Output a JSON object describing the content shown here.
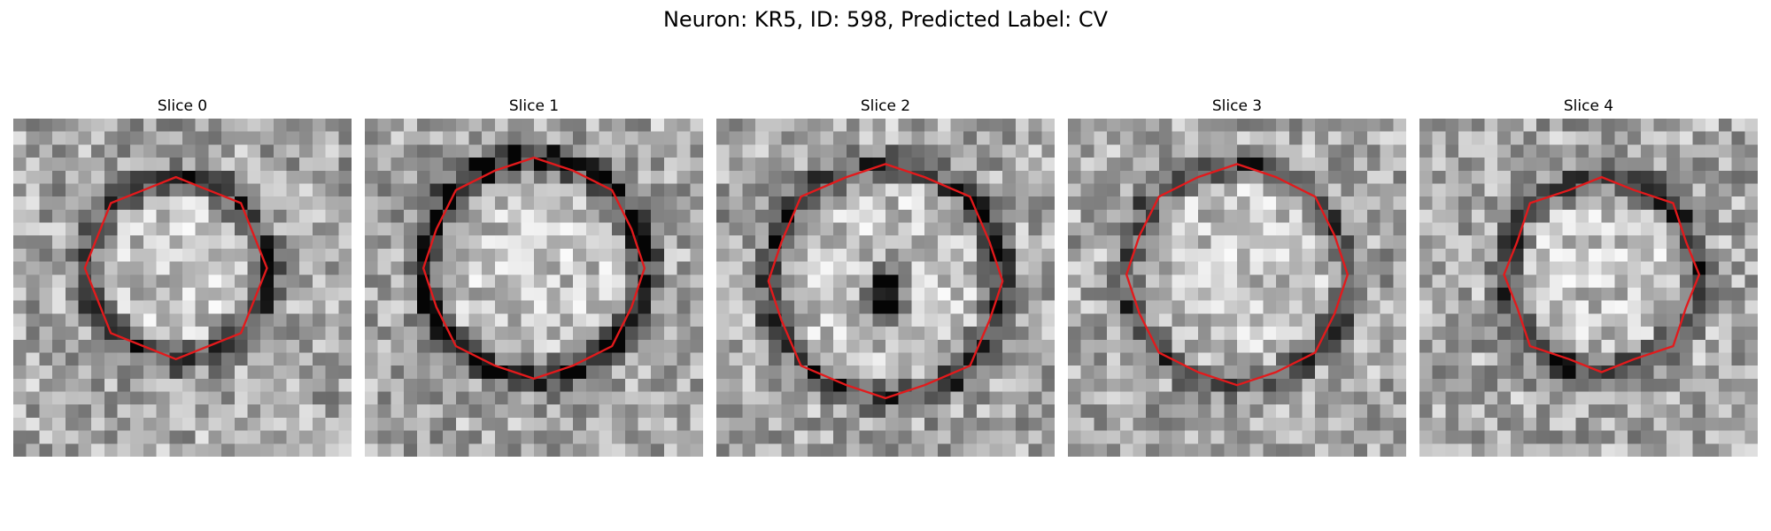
{
  "title": "Neuron: KR5, ID: 598, Predicted Label: CV",
  "contour_color": "#e31a1c",
  "panels": [
    {
      "label": "Slice 0"
    },
    {
      "label": "Slice 1"
    },
    {
      "label": "Slice 2"
    },
    {
      "label": "Slice 3"
    },
    {
      "label": "Slice 4"
    }
  ]
}
